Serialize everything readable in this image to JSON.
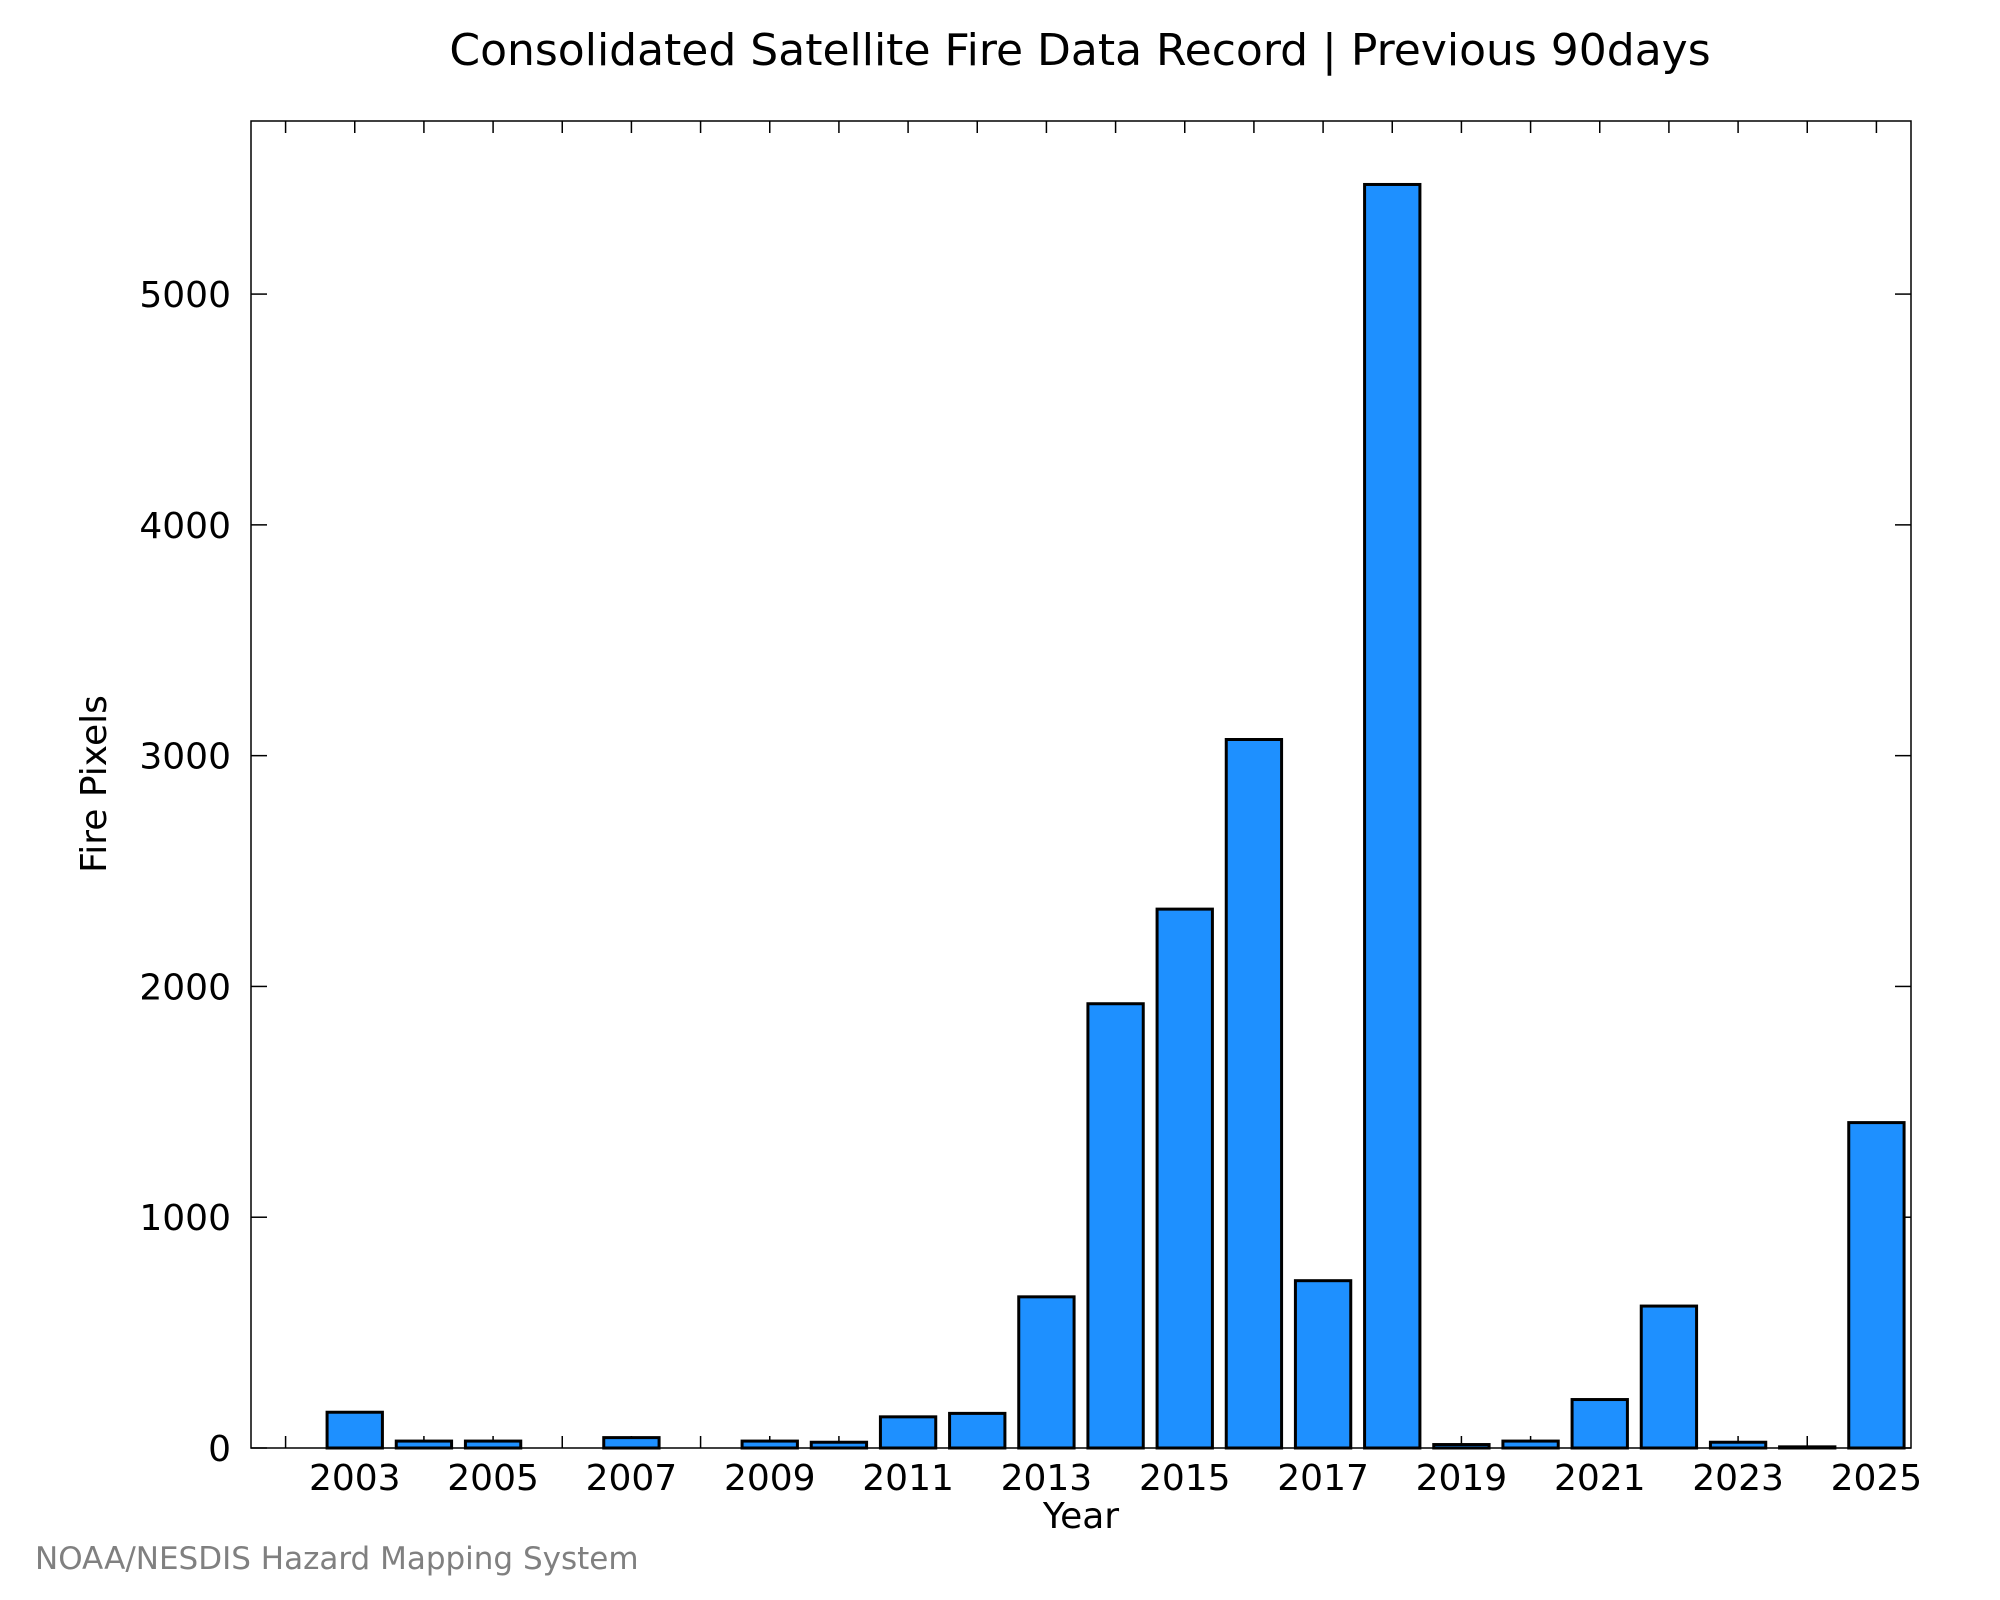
{
  "chart_data": {
    "type": "bar",
    "title": "Consolidated Satellite Fire Data Record | Previous 90days",
    "xlabel": "Year",
    "ylabel": "Fire Pixels",
    "categories": [
      "2003",
      "2004",
      "2005",
      "2006",
      "2007",
      "2008",
      "2009",
      "2010",
      "2011",
      "2012",
      "2013",
      "2014",
      "2015",
      "2016",
      "2017",
      "2018",
      "2019",
      "2020",
      "2021",
      "2022",
      "2023",
      "2024",
      "2025"
    ],
    "x_tick_labels": [
      "2003",
      "2005",
      "2007",
      "2009",
      "2011",
      "2013",
      "2015",
      "2017",
      "2019",
      "2021",
      "2023",
      "2025"
    ],
    "x_tick_values": [
      2003,
      2005,
      2007,
      2009,
      2011,
      2013,
      2015,
      2017,
      2019,
      2021,
      2023,
      2025
    ],
    "xlim": [
      2001.5,
      2025.5
    ],
    "values": [
      155,
      30,
      30,
      0,
      45,
      0,
      30,
      25,
      135,
      150,
      655,
      1925,
      2335,
      3070,
      725,
      5475,
      15,
      30,
      210,
      615,
      25,
      5,
      1410
    ],
    "ylim": [
      0,
      5750
    ],
    "y_tick_values": [
      0,
      1000,
      2000,
      3000,
      4000,
      5000
    ],
    "y_tick_labels": [
      "0",
      "1000",
      "2000",
      "3000",
      "4000",
      "5000"
    ],
    "bar_color": "#1e90ff",
    "bar_edge_color": "#000000",
    "grid": false,
    "legend": "none"
  },
  "credit": "NOAA/NESDIS Hazard Mapping System"
}
